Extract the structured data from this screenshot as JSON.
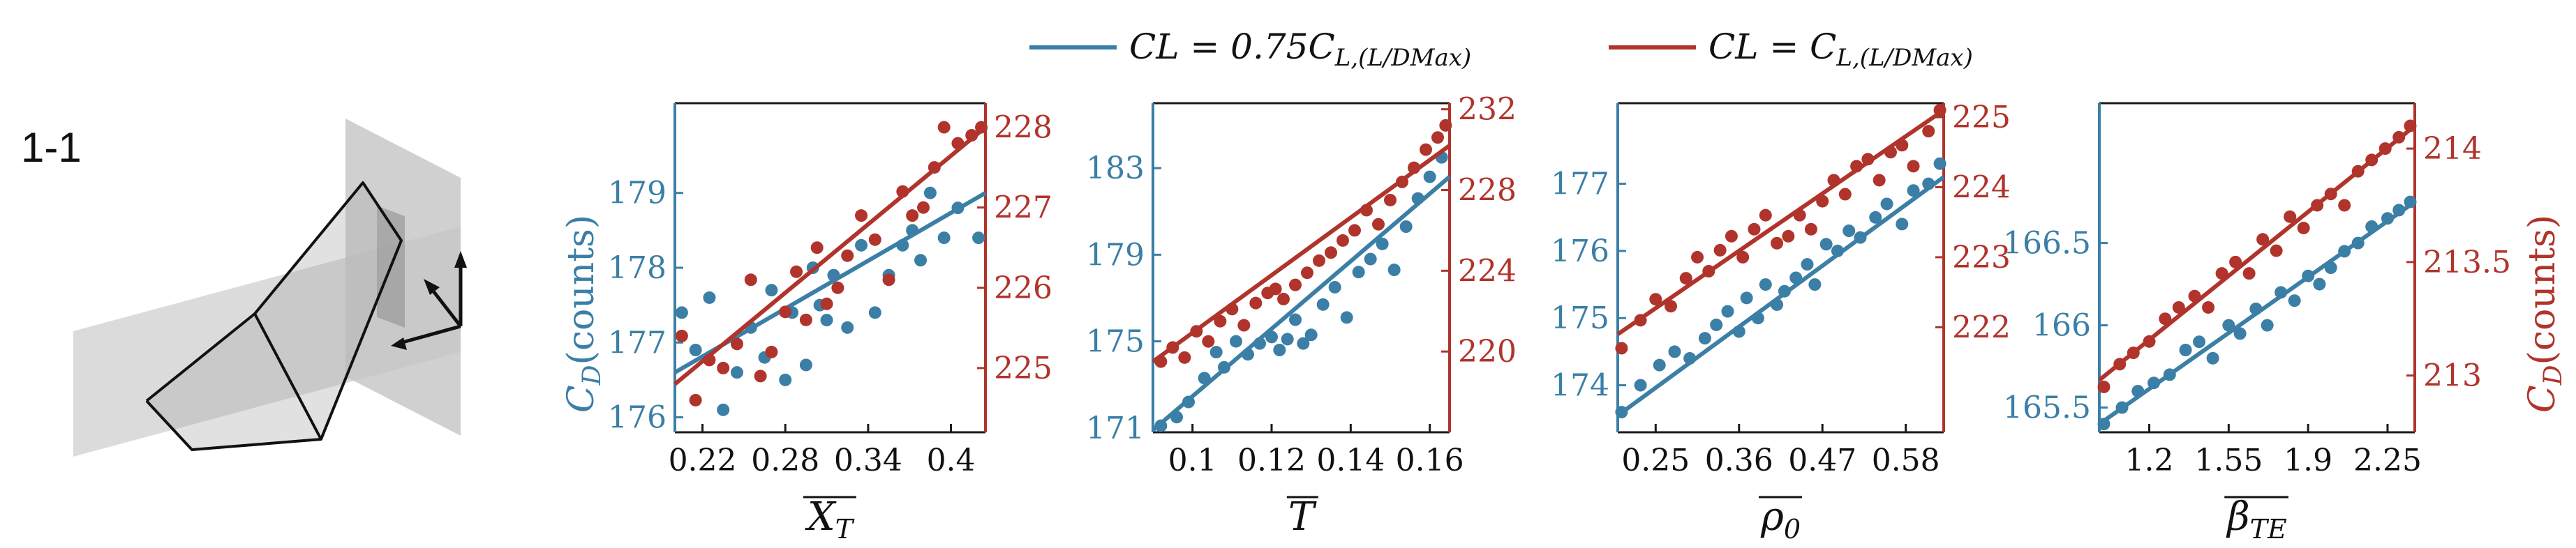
{
  "figure": {
    "panel_tag": "1-1",
    "colors": {
      "series_blue": "#3b7fa6",
      "series_red": "#b0342b",
      "axis_black": "#1a1a1a",
      "plane_gray": "#d2d2d2"
    },
    "legend": {
      "entries": [
        {
          "color": "#3b7fa6",
          "prefix": "CL = 0.75C",
          "sub": "L,(L/DMax)"
        },
        {
          "color": "#b0342b",
          "prefix": "CL = C",
          "sub": "L,(L/DMax)"
        }
      ]
    },
    "left_axis_label": {
      "main": "C",
      "sub": "D",
      "rest": "(counts)"
    },
    "right_axis_label": {
      "main": "C",
      "sub": "D",
      "rest": "(counts)"
    }
  },
  "chart_data": [
    {
      "type": "scatter",
      "xlabel": {
        "base": "X",
        "sub": "T",
        "overline": true
      },
      "xlim": [
        0.2,
        0.425
      ],
      "xticks": [
        0.22,
        0.28,
        0.34,
        0.4
      ],
      "xtick_labels": [
        "0.22",
        "0.28",
        "0.34",
        "0.4"
      ],
      "y_left": {
        "lim": [
          175.8,
          180.2
        ],
        "ticks": [
          176,
          177,
          178,
          179
        ],
        "tick_labels": [
          "176",
          "177",
          "178",
          "179"
        ]
      },
      "y_right": {
        "lim": [
          224.2,
          228.3
        ],
        "ticks": [
          225,
          226,
          227,
          228
        ],
        "tick_labels": [
          "225",
          "226",
          "227",
          "228"
        ]
      },
      "series": [
        {
          "axis": "left",
          "color": "#3b7fa6",
          "x": [
            0.205,
            0.215,
            0.225,
            0.235,
            0.245,
            0.255,
            0.265,
            0.27,
            0.28,
            0.285,
            0.295,
            0.3,
            0.305,
            0.31,
            0.315,
            0.325,
            0.335,
            0.345,
            0.355,
            0.365,
            0.372,
            0.378,
            0.385,
            0.395,
            0.405,
            0.42
          ],
          "y": [
            177.4,
            176.9,
            177.6,
            176.1,
            176.6,
            177.2,
            176.8,
            177.7,
            176.5,
            177.4,
            176.7,
            178.0,
            177.5,
            177.3,
            177.9,
            177.2,
            178.3,
            177.4,
            177.9,
            178.3,
            178.5,
            178.1,
            179.0,
            178.4,
            178.8,
            178.4
          ],
          "fit": [
            [
              0.2,
              176.6
            ],
            [
              0.425,
              179.0
            ]
          ]
        },
        {
          "axis": "right",
          "color": "#b0342b",
          "x": [
            0.205,
            0.215,
            0.225,
            0.235,
            0.245,
            0.255,
            0.262,
            0.27,
            0.28,
            0.288,
            0.295,
            0.303,
            0.31,
            0.318,
            0.325,
            0.335,
            0.345,
            0.355,
            0.365,
            0.372,
            0.38,
            0.388,
            0.395,
            0.405,
            0.415,
            0.422
          ],
          "y": [
            225.4,
            224.6,
            225.1,
            225.0,
            225.3,
            226.1,
            224.9,
            225.2,
            225.7,
            226.2,
            225.6,
            226.5,
            225.8,
            226.0,
            226.4,
            226.9,
            226.6,
            226.1,
            227.2,
            226.9,
            227.0,
            227.5,
            228.0,
            227.8,
            227.9,
            228.0
          ],
          "fit": [
            [
              0.2,
              224.8
            ],
            [
              0.425,
              228.0
            ]
          ]
        }
      ]
    },
    {
      "type": "scatter",
      "xlabel": {
        "base": "T",
        "sub": "",
        "overline": true
      },
      "xlim": [
        0.09,
        0.165
      ],
      "xticks": [
        0.1,
        0.12,
        0.14,
        0.16
      ],
      "xtick_labels": [
        "0.1",
        "0.12",
        "0.14",
        "0.16"
      ],
      "y_left": {
        "lim": [
          170.8,
          186.0
        ],
        "ticks": [
          171,
          175,
          179,
          183
        ],
        "tick_labels": [
          "171",
          "175",
          "179",
          "183"
        ]
      },
      "y_right": {
        "lim": [
          216.0,
          232.3
        ],
        "ticks": [
          220,
          224,
          228,
          232
        ],
        "tick_labels": [
          "220",
          "224",
          "228",
          "232"
        ]
      },
      "series": [
        {
          "axis": "left",
          "color": "#3b7fa6",
          "x": [
            0.092,
            0.096,
            0.099,
            0.103,
            0.106,
            0.108,
            0.111,
            0.114,
            0.117,
            0.12,
            0.122,
            0.124,
            0.126,
            0.128,
            0.13,
            0.133,
            0.136,
            0.139,
            0.142,
            0.145,
            0.148,
            0.151,
            0.154,
            0.157,
            0.16,
            0.163
          ],
          "y": [
            171.1,
            171.5,
            172.2,
            173.3,
            174.5,
            173.8,
            175.0,
            174.4,
            174.9,
            175.2,
            174.6,
            175.1,
            176.0,
            174.9,
            175.3,
            176.7,
            177.5,
            176.1,
            178.2,
            178.8,
            179.5,
            178.3,
            180.3,
            181.6,
            182.6,
            183.5
          ],
          "fit": [
            [
              0.09,
              170.9
            ],
            [
              0.165,
              182.6
            ]
          ]
        },
        {
          "axis": "right",
          "color": "#b0342b",
          "x": [
            0.092,
            0.095,
            0.098,
            0.101,
            0.104,
            0.107,
            0.11,
            0.113,
            0.116,
            0.119,
            0.121,
            0.123,
            0.126,
            0.129,
            0.132,
            0.135,
            0.138,
            0.141,
            0.144,
            0.147,
            0.15,
            0.153,
            0.156,
            0.159,
            0.162,
            0.164
          ],
          "y": [
            219.5,
            220.2,
            219.7,
            221.0,
            220.5,
            221.5,
            222.1,
            221.3,
            222.4,
            222.9,
            223.1,
            222.6,
            223.3,
            223.9,
            224.5,
            224.9,
            225.5,
            226.0,
            227.0,
            226.3,
            227.5,
            228.4,
            229.1,
            230.0,
            230.6,
            231.2
          ],
          "fit": [
            [
              0.09,
              219.5
            ],
            [
              0.165,
              230.2
            ]
          ]
        }
      ]
    },
    {
      "type": "scatter",
      "xlabel": {
        "base": "ρ",
        "sub": "0",
        "overline": true
      },
      "xlim": [
        0.2,
        0.63
      ],
      "xticks": [
        0.25,
        0.36,
        0.47,
        0.58
      ],
      "xtick_labels": [
        "0.25",
        "0.36",
        "0.47",
        "0.58"
      ],
      "y_left": {
        "lim": [
          173.3,
          178.2
        ],
        "ticks": [
          174,
          175,
          176,
          177
        ],
        "tick_labels": [
          "174",
          "175",
          "176",
          "177"
        ]
      },
      "y_right": {
        "lim": [
          220.5,
          225.2
        ],
        "ticks": [
          222,
          223,
          224,
          225
        ],
        "tick_labels": [
          "222",
          "223",
          "224",
          "225"
        ]
      },
      "series": [
        {
          "axis": "left",
          "color": "#3b7fa6",
          "x": [
            0.205,
            0.23,
            0.255,
            0.275,
            0.295,
            0.315,
            0.33,
            0.345,
            0.36,
            0.37,
            0.385,
            0.395,
            0.41,
            0.42,
            0.435,
            0.45,
            0.46,
            0.475,
            0.49,
            0.505,
            0.52,
            0.54,
            0.555,
            0.575,
            0.59,
            0.61,
            0.625
          ],
          "y": [
            173.6,
            174.0,
            174.3,
            174.5,
            174.4,
            174.7,
            174.9,
            175.1,
            174.8,
            175.3,
            175.0,
            175.5,
            175.2,
            175.4,
            175.6,
            175.8,
            175.5,
            176.1,
            176.0,
            176.3,
            176.2,
            176.5,
            176.7,
            176.4,
            176.9,
            177.0,
            177.3
          ],
          "fit": [
            [
              0.2,
              173.55
            ],
            [
              0.63,
              177.1
            ]
          ]
        },
        {
          "axis": "right",
          "color": "#b0342b",
          "x": [
            0.205,
            0.23,
            0.25,
            0.27,
            0.29,
            0.305,
            0.32,
            0.335,
            0.35,
            0.365,
            0.38,
            0.395,
            0.41,
            0.425,
            0.44,
            0.455,
            0.47,
            0.485,
            0.5,
            0.515,
            0.53,
            0.545,
            0.56,
            0.575,
            0.59,
            0.61,
            0.625
          ],
          "y": [
            221.7,
            222.1,
            222.4,
            222.3,
            222.7,
            223.0,
            222.8,
            223.1,
            223.3,
            223.0,
            223.4,
            223.6,
            223.2,
            223.3,
            223.6,
            223.4,
            223.8,
            224.1,
            223.9,
            224.3,
            224.4,
            224.1,
            224.5,
            224.6,
            224.3,
            224.8,
            225.1
          ],
          "fit": [
            [
              0.2,
              221.9
            ],
            [
              0.63,
              225.1
            ]
          ]
        }
      ]
    },
    {
      "type": "scatter",
      "xlabel": {
        "base": "β",
        "sub": "TE",
        "overline": true
      },
      "xlim": [
        0.98,
        2.37
      ],
      "xticks": [
        1.2,
        1.55,
        1.9,
        2.25
      ],
      "xtick_labels": [
        "1.2",
        "1.55",
        "1.9",
        "2.25"
      ],
      "y_left": {
        "lim": [
          165.35,
          167.35
        ],
        "ticks": [
          165.5,
          166,
          166.5
        ],
        "tick_labels": [
          "165.5",
          "166",
          "166.5"
        ]
      },
      "y_right": {
        "lim": [
          212.75,
          214.2
        ],
        "ticks": [
          213,
          213.5,
          214
        ],
        "tick_labels": [
          "213",
          "213.5",
          "214"
        ]
      },
      "series": [
        {
          "axis": "left",
          "color": "#3b7fa6",
          "x": [
            1.0,
            1.08,
            1.15,
            1.22,
            1.29,
            1.36,
            1.42,
            1.48,
            1.55,
            1.6,
            1.67,
            1.72,
            1.78,
            1.84,
            1.9,
            1.95,
            2.0,
            2.06,
            2.12,
            2.18,
            2.25,
            2.3,
            2.35
          ],
          "y": [
            165.4,
            165.5,
            165.6,
            165.65,
            165.7,
            165.85,
            165.9,
            165.8,
            166.0,
            165.95,
            166.1,
            166.0,
            166.2,
            166.15,
            166.3,
            166.25,
            166.35,
            166.45,
            166.5,
            166.6,
            166.65,
            166.7,
            166.75
          ],
          "fit": [
            [
              0.98,
              165.4
            ],
            [
              2.37,
              166.75
            ]
          ]
        },
        {
          "axis": "right",
          "color": "#b0342b",
          "x": [
            1.0,
            1.07,
            1.13,
            1.2,
            1.27,
            1.33,
            1.4,
            1.46,
            1.52,
            1.58,
            1.64,
            1.7,
            1.76,
            1.82,
            1.88,
            1.94,
            2.0,
            2.06,
            2.12,
            2.18,
            2.24,
            2.3,
            2.35
          ],
          "y": [
            212.95,
            213.05,
            213.1,
            213.15,
            213.25,
            213.3,
            213.35,
            213.3,
            213.45,
            213.5,
            213.45,
            213.6,
            213.55,
            213.7,
            213.65,
            213.75,
            213.8,
            213.75,
            213.9,
            213.95,
            214.0,
            214.05,
            214.1
          ],
          "fit": [
            [
              0.98,
              212.98
            ],
            [
              2.37,
              214.1
            ]
          ]
        }
      ]
    }
  ]
}
